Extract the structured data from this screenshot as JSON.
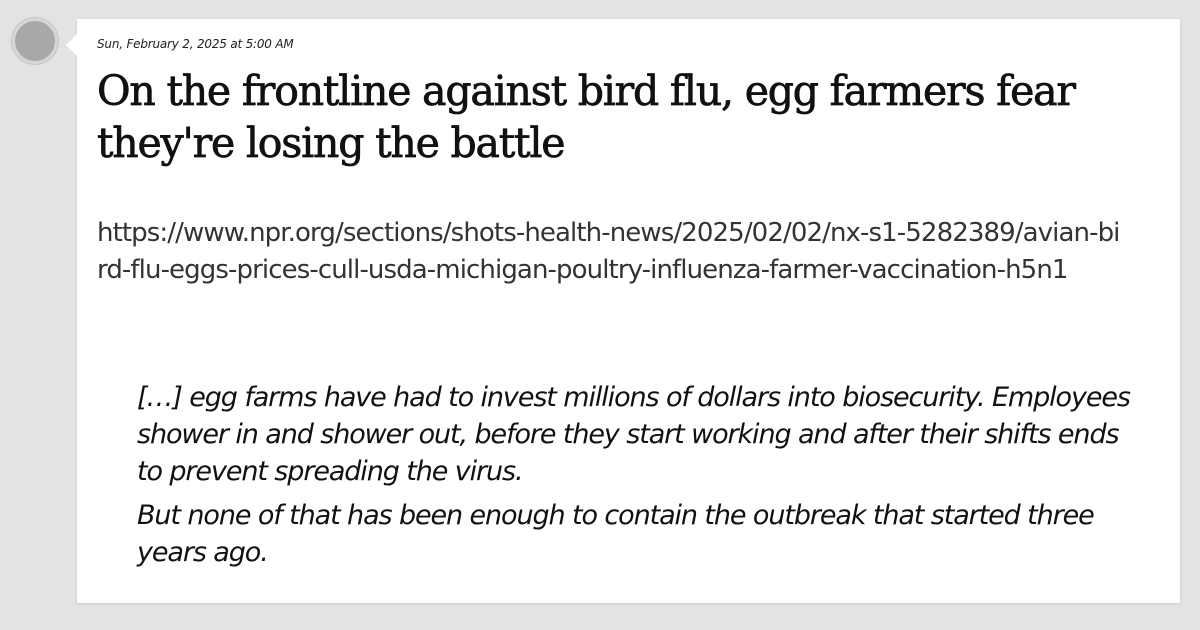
{
  "post": {
    "timestamp": "Sun, February 2, 2025 at 5:00 AM",
    "headline": "On the frontline against bird flu, egg farmers fear they're losing the battle",
    "url": "https://www.npr.org/sections/shots-health-news/2025/02/02/nx-s1-5282389/avian-bird-flu-eggs-prices-cull-usda-michigan-poultry-influenza-farmer-vaccination-h5n1",
    "quote": [
      "[…] egg farms have had to invest millions of dollars into biosecurity. Employees shower in and shower out, before they start working and after their shifts ends to prevent spreading the virus.",
      "But none of that has been enough to contain the outbreak that started three years ago."
    ]
  }
}
